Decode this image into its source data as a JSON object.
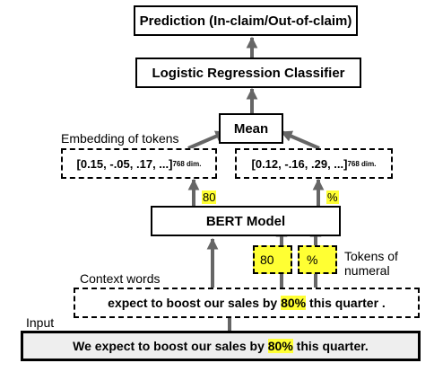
{
  "nodes": {
    "prediction": "Prediction (In-claim/Out-of-claim)",
    "classifier": "Logistic Regression Classifier",
    "mean": "Mean",
    "embedding_left": "[0.15, -.05, .17, ...]",
    "embedding_right": "[0.12, -.16, .29, ...]",
    "embedding_dim": "768 dim.",
    "bert": "BERT Model",
    "token_80": "80",
    "token_pct": "%",
    "context": {
      "pre": "expect to boost our sales by ",
      "highlight": "80%",
      "post": " this quarter ."
    },
    "input": {
      "pre": "We expect to boost our sales by ",
      "highlight": "80%",
      "post": " this quarter."
    }
  },
  "labels": {
    "embedding_of_tokens": "Embedding of tokens",
    "context_words": "Context words",
    "input": "Input",
    "tokens_of_numeral_line1": "Tokens of",
    "tokens_of_numeral_line2": "numeral",
    "output_tag_80": "80",
    "output_tag_pct": "%"
  },
  "colors": {
    "highlight": "#ffff33",
    "arrow": "#666666",
    "input_fill": "#eeeeee"
  }
}
